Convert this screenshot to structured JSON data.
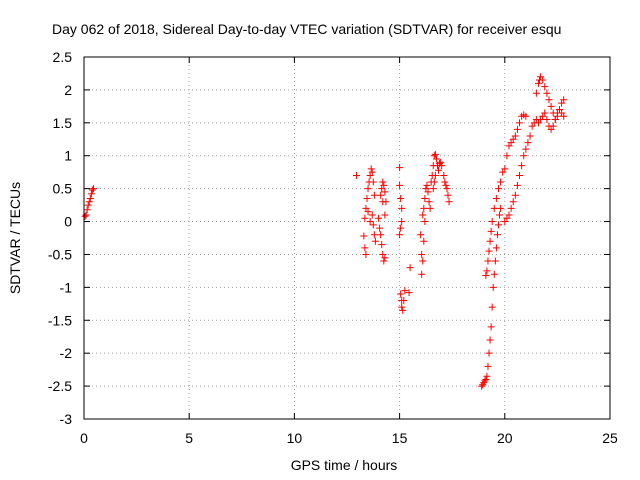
{
  "chart_data": {
    "type": "scatter",
    "title": "Day 062 of 2018, Sidereal Day-to-day VTEC variation (SDTVAR) for receiver esqu",
    "xlabel": "GPS time / hours",
    "ylabel": "SDTVAR / TECUs",
    "xlim": [
      0,
      25
    ],
    "ylim": [
      -3,
      2.5
    ],
    "xticks": [
      "0",
      "5",
      "10",
      "15",
      "20",
      "25"
    ],
    "yticks": [
      "-3",
      "-2.5",
      "-2",
      "-1.5",
      "-1",
      "-0.5",
      "0",
      "0.5",
      "1",
      "1.5",
      "2",
      "2.5"
    ],
    "grid": true,
    "marker": "+",
    "color": "#ff0000",
    "series": [
      {
        "points": [
          [
            0.05,
            0.08
          ],
          [
            0.1,
            0.1
          ],
          [
            0.15,
            0.18
          ],
          [
            0.2,
            0.25
          ],
          [
            0.25,
            0.3
          ],
          [
            0.3,
            0.35
          ],
          [
            0.35,
            0.42
          ],
          [
            0.4,
            0.48
          ],
          [
            0.45,
            0.5
          ],
          [
            12.95,
            0.7
          ],
          [
            13.3,
            -0.22
          ],
          [
            13.35,
            -0.4
          ],
          [
            13.4,
            -0.5
          ],
          [
            13.35,
            0.05
          ],
          [
            13.4,
            0.2
          ],
          [
            13.45,
            0.35
          ],
          [
            13.5,
            0.5
          ],
          [
            13.55,
            0.6
          ],
          [
            13.6,
            0.7
          ],
          [
            13.65,
            0.8
          ],
          [
            13.7,
            0.75
          ],
          [
            13.75,
            0.6
          ],
          [
            13.8,
            0.4
          ],
          [
            13.7,
            0.1
          ],
          [
            13.75,
            -0.05
          ],
          [
            13.8,
            -0.2
          ],
          [
            13.85,
            -0.3
          ],
          [
            13.6,
            0.0
          ],
          [
            13.5,
            0.15
          ],
          [
            14.0,
            0.05
          ],
          [
            14.05,
            -0.1
          ],
          [
            14.1,
            -0.2
          ],
          [
            14.15,
            -0.35
          ],
          [
            14.2,
            -0.5
          ],
          [
            14.25,
            -0.6
          ],
          [
            14.3,
            -0.55
          ],
          [
            14.1,
            0.4
          ],
          [
            14.15,
            0.5
          ],
          [
            14.2,
            0.6
          ],
          [
            14.25,
            0.55
          ],
          [
            14.3,
            0.45
          ],
          [
            14.35,
            0.3
          ],
          [
            14.2,
            0.3
          ],
          [
            14.3,
            0.1
          ],
          [
            15.0,
            0.82
          ],
          [
            15.0,
            0.55
          ],
          [
            15.05,
            0.35
          ],
          [
            15.1,
            0.2
          ],
          [
            15.1,
            0.0
          ],
          [
            15.05,
            -0.1
          ],
          [
            15.0,
            -0.2
          ],
          [
            15.05,
            -1.1
          ],
          [
            15.1,
            -1.2
          ],
          [
            15.1,
            -1.3
          ],
          [
            15.15,
            -1.35
          ],
          [
            15.2,
            -1.2
          ],
          [
            15.25,
            -1.05
          ],
          [
            15.5,
            -0.7
          ],
          [
            15.45,
            -1.08
          ],
          [
            16.0,
            -0.2
          ],
          [
            16.05,
            -0.5
          ],
          [
            16.05,
            -0.8
          ],
          [
            16.1,
            -0.6
          ],
          [
            16.15,
            -0.3
          ],
          [
            16.2,
            0.0
          ],
          [
            16.15,
            0.2
          ],
          [
            16.2,
            0.35
          ],
          [
            16.25,
            0.5
          ],
          [
            16.3,
            0.55
          ],
          [
            16.35,
            0.45
          ],
          [
            16.4,
            0.3
          ],
          [
            16.45,
            0.2
          ],
          [
            16.1,
            0.1
          ],
          [
            16.5,
            0.6
          ],
          [
            16.55,
            0.7
          ],
          [
            16.6,
            0.85
          ],
          [
            16.65,
            1.0
          ],
          [
            16.7,
            1.02
          ],
          [
            16.75,
            0.95
          ],
          [
            16.8,
            0.85
          ],
          [
            16.85,
            0.78
          ],
          [
            16.9,
            0.88
          ],
          [
            16.95,
            0.9
          ],
          [
            17.0,
            0.85
          ],
          [
            16.6,
            0.5
          ],
          [
            16.65,
            0.6
          ],
          [
            16.7,
            0.7
          ],
          [
            17.1,
            0.7
          ],
          [
            17.15,
            0.6
          ],
          [
            17.2,
            0.55
          ],
          [
            17.25,
            0.5
          ],
          [
            17.3,
            0.4
          ],
          [
            17.35,
            0.3
          ],
          [
            18.9,
            -2.5
          ],
          [
            18.95,
            -2.48
          ],
          [
            19.0,
            -2.45
          ],
          [
            19.05,
            -2.42
          ],
          [
            19.1,
            -2.4
          ],
          [
            19.15,
            -2.35
          ],
          [
            19.2,
            -2.2
          ],
          [
            19.25,
            -2.0
          ],
          [
            19.3,
            -1.8
          ],
          [
            19.35,
            -1.6
          ],
          [
            19.4,
            -1.3
          ],
          [
            19.45,
            -1.0
          ],
          [
            19.5,
            -0.8
          ],
          [
            19.55,
            -0.6
          ],
          [
            19.6,
            -0.4
          ],
          [
            19.65,
            -0.2
          ],
          [
            19.7,
            -0.05
          ],
          [
            19.75,
            0.1
          ],
          [
            19.8,
            0.2
          ],
          [
            19.1,
            -0.82
          ],
          [
            19.15,
            -0.75
          ],
          [
            19.2,
            -0.6
          ],
          [
            19.25,
            -0.45
          ],
          [
            19.3,
            -0.3
          ],
          [
            19.35,
            -0.15
          ],
          [
            19.4,
            0.0
          ],
          [
            19.5,
            0.2
          ],
          [
            19.6,
            0.35
          ],
          [
            19.7,
            0.5
          ],
          [
            19.8,
            0.6
          ],
          [
            19.9,
            0.75
          ],
          [
            20.0,
            0.8
          ],
          [
            20.1,
            1.0
          ],
          [
            20.2,
            1.15
          ],
          [
            20.3,
            1.2
          ],
          [
            20.4,
            1.25
          ],
          [
            20.5,
            1.3
          ],
          [
            20.6,
            1.4
          ],
          [
            20.7,
            1.5
          ],
          [
            20.8,
            1.6
          ],
          [
            20.9,
            1.62
          ],
          [
            21.0,
            1.6
          ],
          [
            20.0,
            0.0
          ],
          [
            20.1,
            0.05
          ],
          [
            20.2,
            0.1
          ],
          [
            20.3,
            0.2
          ],
          [
            20.4,
            0.3
          ],
          [
            20.5,
            0.4
          ],
          [
            20.6,
            0.55
          ],
          [
            20.7,
            0.7
          ],
          [
            20.8,
            0.85
          ],
          [
            20.9,
            1.0
          ],
          [
            21.0,
            1.1
          ],
          [
            21.1,
            1.2
          ],
          [
            21.2,
            1.3
          ],
          [
            21.3,
            1.45
          ],
          [
            21.4,
            1.5
          ],
          [
            21.5,
            1.55
          ],
          [
            21.5,
            1.95
          ],
          [
            21.6,
            2.1
          ],
          [
            21.65,
            2.15
          ],
          [
            21.7,
            2.2
          ],
          [
            21.8,
            2.15
          ],
          [
            21.9,
            2.05
          ],
          [
            22.0,
            1.95
          ],
          [
            22.1,
            1.85
          ],
          [
            22.2,
            1.75
          ],
          [
            22.3,
            1.65
          ],
          [
            22.4,
            1.55
          ],
          [
            22.5,
            1.6
          ],
          [
            22.6,
            1.7
          ],
          [
            22.7,
            1.8
          ],
          [
            22.8,
            1.85
          ],
          [
            21.6,
            1.5
          ],
          [
            21.7,
            1.55
          ],
          [
            21.8,
            1.6
          ],
          [
            21.9,
            1.65
          ],
          [
            22.0,
            1.55
          ],
          [
            22.1,
            1.45
          ],
          [
            22.2,
            1.4
          ],
          [
            22.3,
            1.45
          ],
          [
            22.4,
            1.55
          ],
          [
            22.5,
            1.65
          ],
          [
            22.6,
            1.7
          ],
          [
            22.7,
            1.65
          ],
          [
            22.8,
            1.6
          ]
        ]
      }
    ]
  }
}
